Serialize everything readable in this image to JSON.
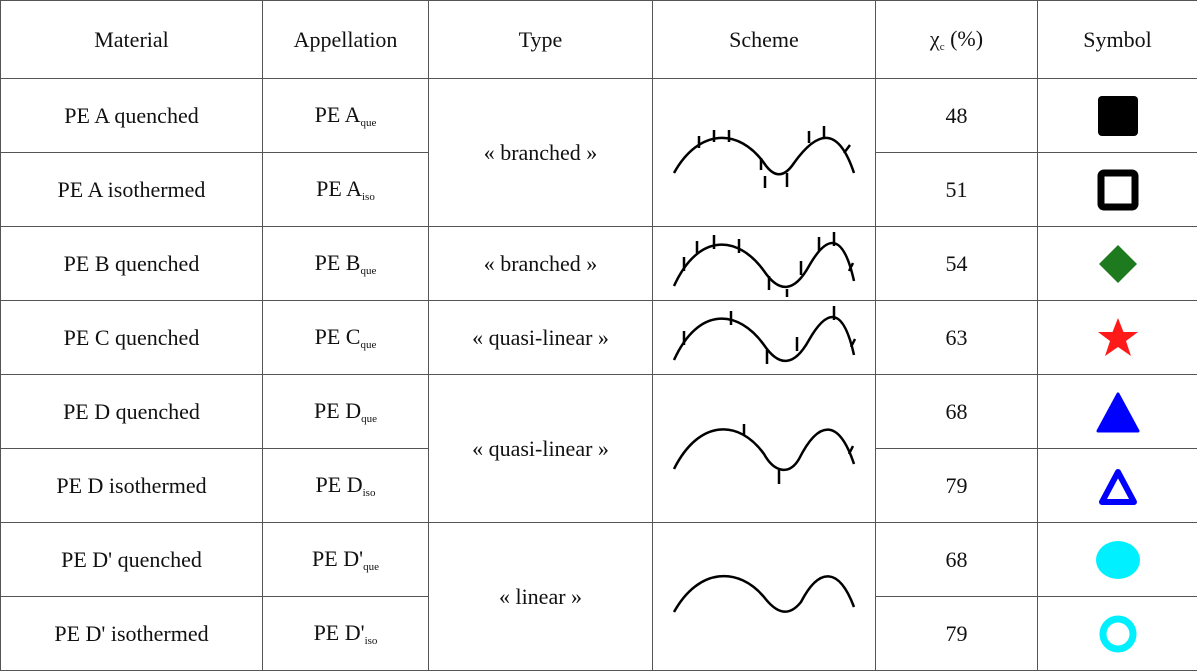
{
  "table": {
    "header": {
      "material": "Material",
      "appellation": "Appellation",
      "type": "Type",
      "scheme": "Scheme",
      "chi": {
        "symbol": "χ",
        "sub": "c",
        "unit": "(%)"
      },
      "symbol": "Symbol"
    },
    "types": [
      "« branched »",
      "« branched »",
      "« quasi-linear »",
      "« quasi-linear »",
      "« linear »"
    ],
    "rows": [
      {
        "material": "PE A quenched",
        "appellation": {
          "base": "PE A",
          "sub": "que"
        },
        "chi": 48
      },
      {
        "material": "PE A isothermed",
        "appellation": {
          "base": "PE A",
          "sub": "iso"
        },
        "chi": 51
      },
      {
        "material": "PE B quenched",
        "appellation": {
          "base": "PE B",
          "sub": "que"
        },
        "chi": 54
      },
      {
        "material": "PE C quenched",
        "appellation": {
          "base": "PE C",
          "sub": "que"
        },
        "chi": 63
      },
      {
        "material": "PE D quenched",
        "appellation": {
          "base": "PE D",
          "sub": "que"
        },
        "chi": 68
      },
      {
        "material": "PE D isothermed",
        "appellation": {
          "base": "PE D",
          "sub": "iso"
        },
        "chi": 79
      },
      {
        "material": "PE D' quenched",
        "appellation": {
          "base": "PE D'",
          "sub": "que"
        },
        "chi": 68
      },
      {
        "material": "PE D' isothermed",
        "appellation": {
          "base": "PE D'",
          "sub": "iso"
        },
        "chi": 79
      }
    ]
  }
}
